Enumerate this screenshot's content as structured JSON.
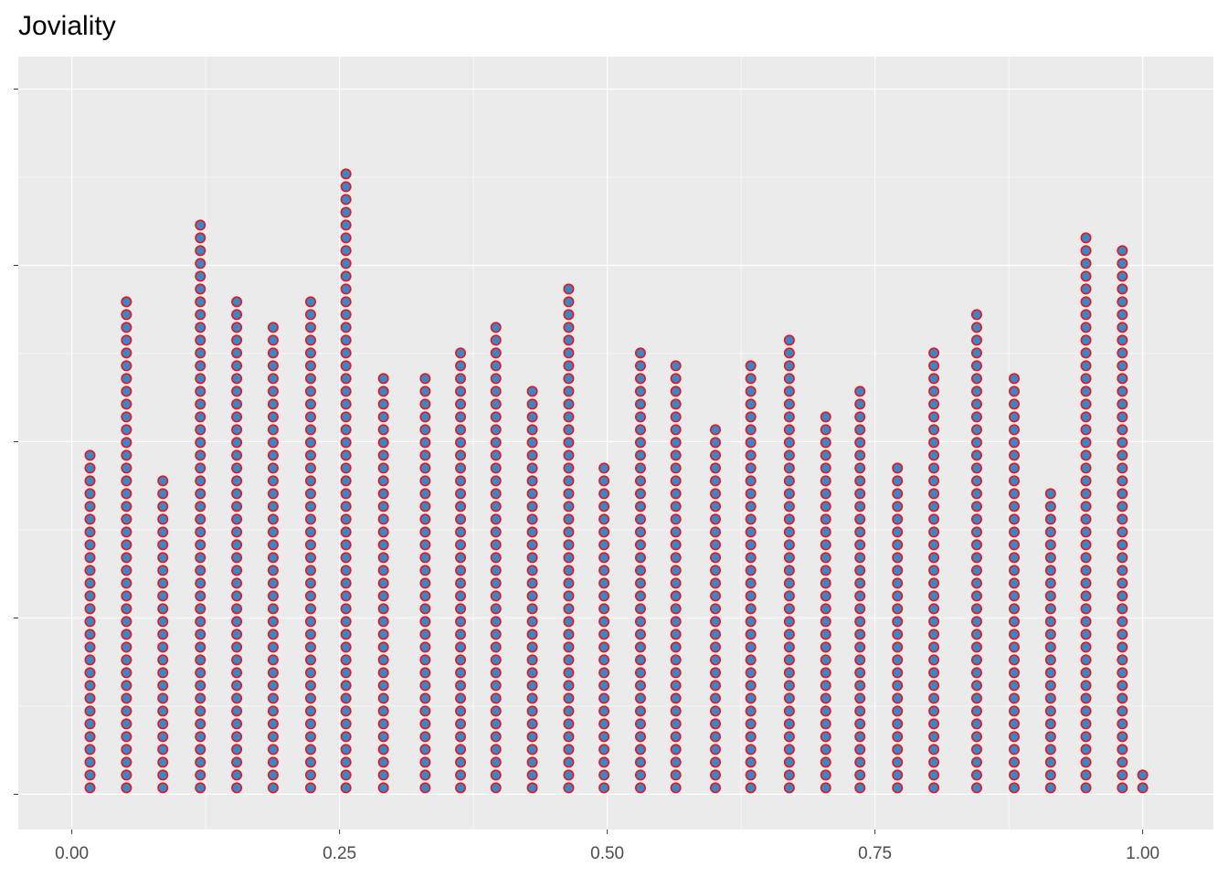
{
  "chart_data": {
    "type": "dotplot",
    "title": "Joviality",
    "x": [
      0.017,
      0.051,
      0.085,
      0.12,
      0.154,
      0.188,
      0.223,
      0.256,
      0.291,
      0.33,
      0.363,
      0.396,
      0.43,
      0.464,
      0.497,
      0.531,
      0.564,
      0.601,
      0.634,
      0.67,
      0.704,
      0.736,
      0.771,
      0.805,
      0.845,
      0.88,
      0.914,
      0.947,
      0.981,
      1.0
    ],
    "values": [
      27,
      39,
      25,
      45,
      39,
      37,
      39,
      49,
      33,
      33,
      35,
      37,
      32,
      40,
      26,
      35,
      34,
      29,
      34,
      36,
      30,
      32,
      26,
      35,
      38,
      33,
      24,
      44,
      43,
      2
    ],
    "color": "#3b86c6",
    "edge_color": "#e8141c",
    "xlim": [
      -0.05,
      1.066
    ],
    "xticks": [
      {
        "value": 0,
        "label": "0.00"
      },
      {
        "value": 0.25,
        "label": "0.25"
      },
      {
        "value": 0.5,
        "label": "0.50"
      },
      {
        "value": 0.75,
        "label": "0.75"
      },
      {
        "value": 1,
        "label": "1.00"
      }
    ],
    "ylim": [
      -0.05,
      1.046
    ],
    "yticks": [
      0,
      0.25,
      0.5,
      0.75,
      1
    ],
    "grid": true
  }
}
